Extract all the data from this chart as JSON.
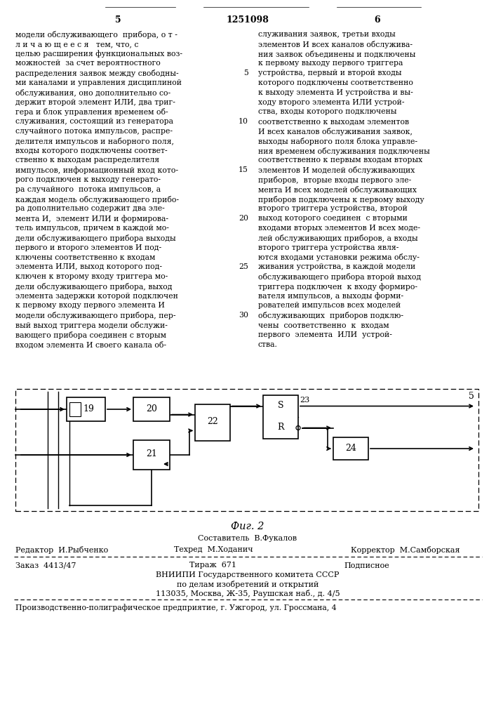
{
  "page_number_left": "5",
  "page_number_right": "6",
  "patent_number": "1251098",
  "bg_color": "#ffffff",
  "left_column_text": [
    "модели обслуживающего  прибора, о т -",
    "л и ч а ю щ е е с я   тем, что, с",
    "целью расширения функциональных воз-",
    "можностей  за счет вероятностного",
    "распределения заявок между свободны-",
    "ми каналами и управления дисциплиной",
    "обслуживания, оно дополнительно со-",
    "держит второй элемент ИЛИ, два триг-",
    "гера и блок управления временем об-",
    "служивания, состоящий из генератора",
    "случайного потока импульсов, распре-",
    "делителя импульсов и наборного поля,",
    "входы которого подключены соответ-",
    "ственно к выходам распределителя",
    "импульсов, информационный вход кото-",
    "рого подключен к выходу генерато-",
    "ра случайного  потока импульсов, а",
    "каждая модель обслуживающего прибо-",
    "ра дополнительно содержит два эле-",
    "мента И,  элемент ИЛИ и формирова-",
    "тель импульсов, причем в каждой мо-",
    "дели обслуживающего прибора выходы",
    "первого и второго элементов И под-",
    "ключены соответственно к входам",
    "элемента ИЛИ, выход которого под-",
    "ключен к второму входу триггера мо-",
    "дели обслуживающего прибора, выход",
    "элемента задержки которой подключен",
    "к первому входу первого элемента И",
    "модели обслуживающего прибора, пер-",
    "вый выход триггера модели обслужи-",
    "вающего прибора соединен с вторым",
    "входом элемента И своего канала об-"
  ],
  "right_column_text": [
    "служивания заявок, третьи входы",
    "элементов И всех каналов обслужива-",
    "ния заявок объединены и подключены",
    "к первому выходу первого триггера",
    "устройства, первый и второй входы",
    "которого подключены соответственно",
    "к выходу элемента И устройства и вы-",
    "ходу второго элемента ИЛИ устрой-",
    "ства, входы которого подключены",
    "соответственно к выходам элементов",
    "И всех каналов обслуживания заявок,",
    "выходы наборного поля блока управле-",
    "ния временем обслуживания подключены",
    "соответственно к первым входам вторых",
    "элементов И моделей обслуживающих",
    "приборов,  вторые входы первого эле-",
    "мента И всех моделей обслуживающих",
    "приборов подключены к первому выходу",
    "второго триггера устройства, второй",
    "выход которого соединен  с вторыми",
    "входами вторых элементов И всех моде-",
    "лей обслуживающих приборов, а входы",
    "второго триггера устройства явля-",
    "ются входами установки режима обслу-",
    "живания устройства, в каждой модели",
    "обслуживающего прибора второй выход",
    "триггера подключен  к входу формиро-",
    "вателя импульсов, а выходы форми-",
    "рователей импульсов всех моделей",
    "обслуживающих  приборов подклю-",
    "чены  соответственно  к  входам",
    "первого  элемента  ИЛИ  устрой-",
    "ства."
  ],
  "line_numbers_rows": [
    4,
    9,
    14,
    19,
    24,
    29
  ],
  "line_numbers_vals": [
    5,
    10,
    15,
    20,
    25,
    30
  ],
  "fig_caption": "Фиг. 2",
  "sestavitel": "Составитель  В.Фукалов",
  "redaktor": "Редактор  И.Рыбченко",
  "tehred": "Техред  М.Ходанич",
  "korrektor": "Корректор  М.Самборская",
  "zakaz": "Заказ  4413/47",
  "tirazh": "Тираж  671",
  "podpisnoe": "Подписное",
  "vniipii_line1": "ВНИИПИ Государственного комитета СССР",
  "vniipii_line2": "по делам изобретений и открытий",
  "vniipii_line3": "113035, Москва, Ж-35, Раушская наб., д. 4/5",
  "factory_line": "Производственно-полиграфическое предприятие, г. Ужгород, ул. Гроссмана, 4"
}
